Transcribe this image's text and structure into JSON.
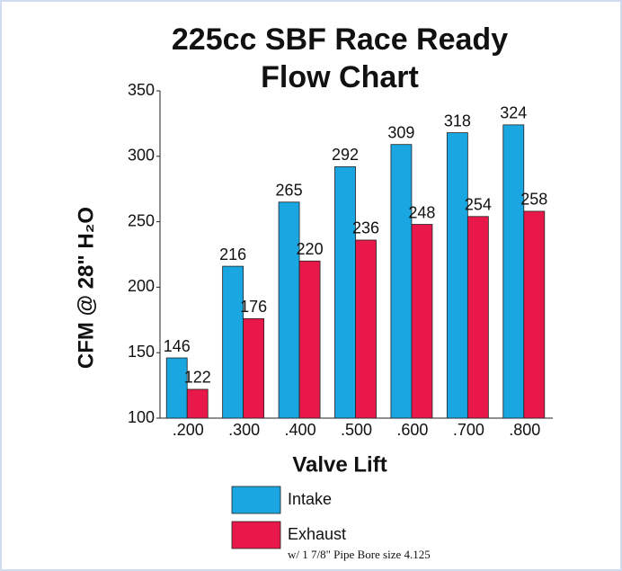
{
  "chart_data": {
    "type": "bar",
    "title": "225cc SBF Race Ready Flow Chart",
    "xlabel": "Valve Lift",
    "ylabel": "CFM @ 28\" H₂O",
    "note": "w/ 1 7/8\" Pipe Bore size 4.125",
    "categories": [
      ".200",
      ".300",
      ".400",
      ".500",
      ".600",
      ".700",
      ".800"
    ],
    "series": [
      {
        "name": "Intake",
        "color": "#1aa6e0",
        "values": [
          146,
          216,
          265,
          292,
          309,
          318,
          324
        ]
      },
      {
        "name": "Exhaust",
        "color": "#e8194a",
        "values": [
          122,
          176,
          220,
          236,
          248,
          254,
          258
        ]
      }
    ],
    "ylim": [
      100,
      350
    ],
    "yticks": [
      100,
      150,
      200,
      250,
      300,
      350
    ],
    "grid": false
  }
}
